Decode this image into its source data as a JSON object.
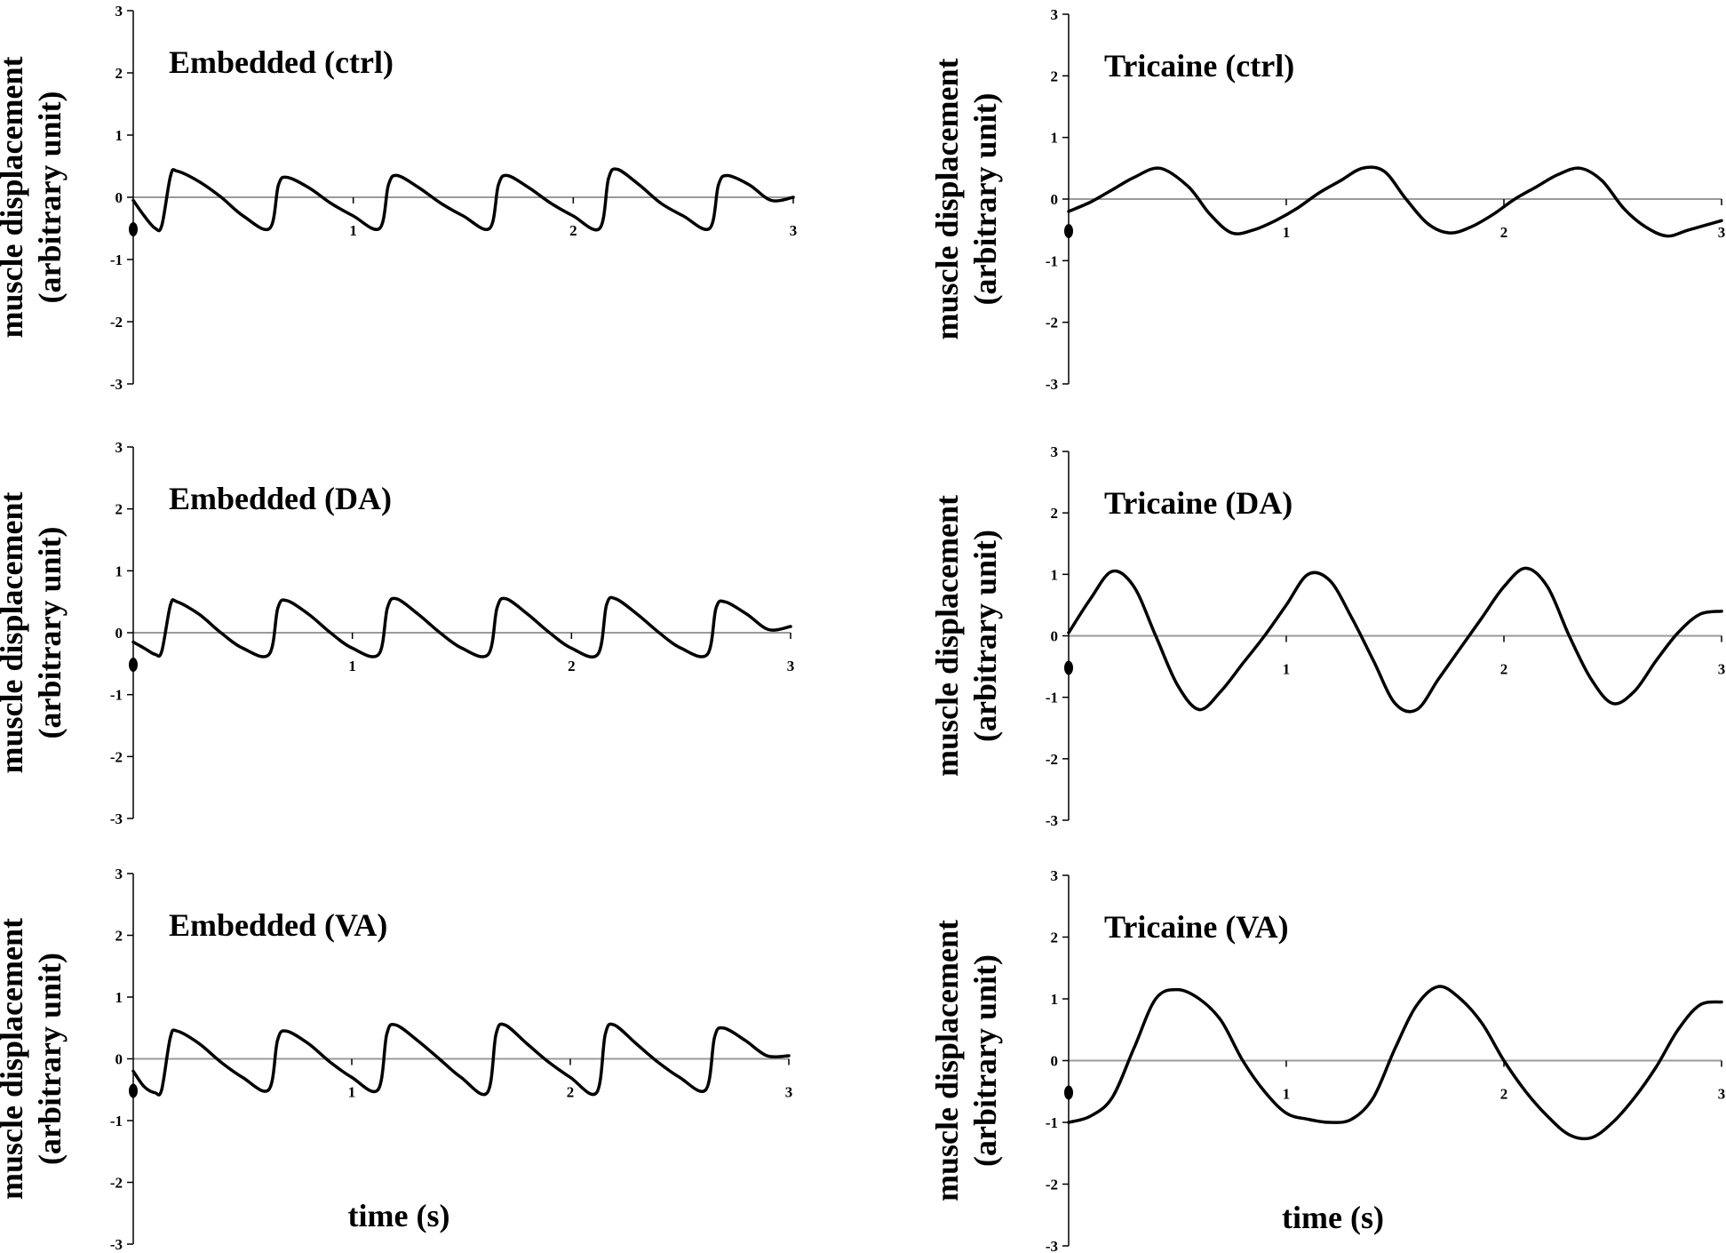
{
  "chart_data": [
    {
      "type": "line",
      "title": "Embedded (ctrl)",
      "ylabel": [
        "muscle displacement",
        "(arbitrary unit)"
      ],
      "xlabel": "",
      "xlim": [
        0,
        3
      ],
      "ylim": [
        -3,
        3
      ],
      "xticks": [
        "1",
        "2",
        "3"
      ],
      "yticks": [
        "3",
        "2",
        "1",
        "0",
        "-1",
        "-2",
        "-3"
      ],
      "grid": false,
      "legend": "none",
      "series": [
        {
          "x": [
            0,
            0.05,
            0.1,
            0.13,
            0.17,
            0.2,
            0.3,
            0.4,
            0.5,
            0.62,
            0.66,
            0.7,
            0.8,
            0.9,
            1.0,
            1.12,
            1.16,
            1.2,
            1.3,
            1.4,
            1.5,
            1.62,
            1.66,
            1.7,
            1.8,
            1.9,
            2.0,
            2.12,
            2.16,
            2.2,
            2.3,
            2.4,
            2.5,
            2.62,
            2.66,
            2.7,
            2.8,
            2.9,
            3.0
          ],
          "y": [
            -0.05,
            -0.3,
            -0.5,
            -0.45,
            0.35,
            0.42,
            0.25,
            0.0,
            -0.3,
            -0.5,
            0.2,
            0.32,
            0.15,
            -0.1,
            -0.3,
            -0.5,
            0.2,
            0.35,
            0.15,
            -0.1,
            -0.3,
            -0.5,
            0.2,
            0.35,
            0.15,
            -0.1,
            -0.3,
            -0.5,
            0.3,
            0.45,
            0.2,
            -0.1,
            -0.3,
            -0.5,
            0.2,
            0.35,
            0.2,
            -0.05,
            0.0
          ]
        }
      ]
    },
    {
      "type": "line",
      "title": "Tricaine (ctrl)",
      "ylabel": [
        "muscle displacement",
        "(arbitrary unit)"
      ],
      "xlabel": "",
      "xlim": [
        0,
        3
      ],
      "ylim": [
        -3,
        3
      ],
      "xticks": [
        "1",
        "2",
        "3"
      ],
      "yticks": [
        "3",
        "2",
        "1",
        "0",
        "-1",
        "-2",
        "-3"
      ],
      "grid": false,
      "legend": "none",
      "series": [
        {
          "x": [
            0,
            0.1,
            0.2,
            0.3,
            0.42,
            0.55,
            0.65,
            0.75,
            0.85,
            0.95,
            1.05,
            1.15,
            1.25,
            1.35,
            1.45,
            1.55,
            1.65,
            1.75,
            1.85,
            1.95,
            2.05,
            2.15,
            2.25,
            2.35,
            2.45,
            2.55,
            2.65,
            2.75,
            2.85,
            3.0
          ],
          "y": [
            -0.2,
            -0.05,
            0.15,
            0.35,
            0.5,
            0.2,
            -0.25,
            -0.55,
            -0.5,
            -0.35,
            -0.15,
            0.1,
            0.3,
            0.5,
            0.45,
            0.0,
            -0.4,
            -0.55,
            -0.45,
            -0.25,
            0.0,
            0.2,
            0.4,
            0.5,
            0.3,
            -0.15,
            -0.45,
            -0.6,
            -0.5,
            -0.35
          ]
        }
      ]
    },
    {
      "type": "line",
      "title": "Embedded (DA)",
      "ylabel": [
        "muscle displacement",
        "(arbitrary unit)"
      ],
      "xlabel": "",
      "xlim": [
        0,
        3
      ],
      "ylim": [
        -3,
        3
      ],
      "xticks": [
        "1",
        "2",
        "3"
      ],
      "yticks": [
        "3",
        "2",
        "1",
        "0",
        "-1",
        "-2",
        "-3"
      ],
      "grid": false,
      "legend": "none",
      "series": [
        {
          "x": [
            0,
            0.05,
            0.1,
            0.13,
            0.17,
            0.2,
            0.3,
            0.4,
            0.5,
            0.62,
            0.66,
            0.7,
            0.8,
            0.9,
            1.0,
            1.12,
            1.16,
            1.2,
            1.3,
            1.4,
            1.5,
            1.62,
            1.66,
            1.7,
            1.8,
            1.9,
            2.0,
            2.12,
            2.16,
            2.2,
            2.3,
            2.4,
            2.5,
            2.62,
            2.66,
            2.7,
            2.8,
            2.9,
            3.0
          ],
          "y": [
            -0.15,
            -0.25,
            -0.35,
            -0.3,
            0.45,
            0.5,
            0.3,
            0.0,
            -0.25,
            -0.35,
            0.4,
            0.52,
            0.3,
            0.0,
            -0.25,
            -0.35,
            0.4,
            0.55,
            0.3,
            0.0,
            -0.25,
            -0.35,
            0.4,
            0.55,
            0.3,
            0.0,
            -0.25,
            -0.35,
            0.45,
            0.55,
            0.3,
            0.0,
            -0.25,
            -0.35,
            0.4,
            0.5,
            0.3,
            0.05,
            0.1
          ]
        }
      ]
    },
    {
      "type": "line",
      "title": "Tricaine (DA)",
      "ylabel": [
        "muscle displacement",
        "(arbitrary unit)"
      ],
      "xlabel": "",
      "xlim": [
        0,
        3
      ],
      "ylim": [
        -3,
        3
      ],
      "xticks": [
        "1",
        "2",
        "3"
      ],
      "yticks": [
        "3",
        "2",
        "1",
        "0",
        "-1",
        "-2",
        "-3"
      ],
      "grid": false,
      "legend": "none",
      "series": [
        {
          "x": [
            0,
            0.1,
            0.2,
            0.3,
            0.4,
            0.5,
            0.6,
            0.7,
            0.8,
            0.9,
            1.0,
            1.1,
            1.2,
            1.3,
            1.4,
            1.5,
            1.6,
            1.7,
            1.8,
            1.9,
            2.0,
            2.1,
            2.2,
            2.3,
            2.4,
            2.5,
            2.6,
            2.7,
            2.8,
            2.9,
            3.0
          ],
          "y": [
            0.05,
            0.6,
            1.05,
            0.8,
            0.0,
            -0.8,
            -1.2,
            -0.9,
            -0.45,
            0.0,
            0.5,
            1.0,
            0.9,
            0.3,
            -0.4,
            -1.1,
            -1.2,
            -0.7,
            -0.2,
            0.3,
            0.8,
            1.1,
            0.8,
            0.0,
            -0.7,
            -1.1,
            -0.9,
            -0.4,
            0.05,
            0.35,
            0.4
          ]
        }
      ]
    },
    {
      "type": "line",
      "title": "Embedded (VA)",
      "ylabel": [
        "muscle displacement",
        "(arbitrary unit)"
      ],
      "xlabel": "time (s)",
      "xlim": [
        0,
        3
      ],
      "ylim": [
        -3,
        3
      ],
      "xticks": [
        "1",
        "2",
        "3"
      ],
      "yticks": [
        "3",
        "2",
        "1",
        "0",
        "-1",
        "-2",
        "-3"
      ],
      "grid": false,
      "legend": "none",
      "series": [
        {
          "x": [
            0,
            0.05,
            0.1,
            0.13,
            0.17,
            0.2,
            0.3,
            0.4,
            0.5,
            0.62,
            0.66,
            0.7,
            0.8,
            0.9,
            1.0,
            1.12,
            1.16,
            1.2,
            1.3,
            1.4,
            1.5,
            1.62,
            1.66,
            1.7,
            1.8,
            1.9,
            2.0,
            2.12,
            2.16,
            2.2,
            2.3,
            2.4,
            2.5,
            2.62,
            2.66,
            2.7,
            2.8,
            2.9,
            3.0
          ],
          "y": [
            -0.2,
            -0.45,
            -0.55,
            -0.5,
            0.35,
            0.45,
            0.25,
            -0.05,
            -0.3,
            -0.5,
            0.3,
            0.45,
            0.25,
            -0.05,
            -0.3,
            -0.5,
            0.4,
            0.55,
            0.3,
            0.0,
            -0.3,
            -0.55,
            0.4,
            0.55,
            0.25,
            -0.05,
            -0.3,
            -0.55,
            0.4,
            0.55,
            0.25,
            -0.05,
            -0.3,
            -0.5,
            0.35,
            0.5,
            0.3,
            0.05,
            0.05
          ]
        }
      ]
    },
    {
      "type": "line",
      "title": "Tricaine (VA)",
      "ylabel": [
        "muscle displacement",
        "(arbitrary unit)"
      ],
      "xlabel": "time (s)",
      "xlim": [
        0,
        3
      ],
      "ylim": [
        -3,
        3
      ],
      "xticks": [
        "1",
        "2",
        "3"
      ],
      "yticks": [
        "3",
        "2",
        "1",
        "0",
        "-1",
        "-2",
        "-3"
      ],
      "grid": false,
      "legend": "none",
      "series": [
        {
          "x": [
            0,
            0.1,
            0.2,
            0.3,
            0.4,
            0.5,
            0.6,
            0.7,
            0.8,
            0.9,
            1.0,
            1.1,
            1.2,
            1.3,
            1.4,
            1.5,
            1.6,
            1.7,
            1.8,
            1.9,
            2.0,
            2.1,
            2.2,
            2.3,
            2.4,
            2.5,
            2.6,
            2.7,
            2.8,
            2.9,
            3.0
          ],
          "y": [
            -1.0,
            -0.9,
            -0.6,
            0.2,
            1.0,
            1.15,
            1.0,
            0.65,
            0.0,
            -0.5,
            -0.85,
            -0.95,
            -1.0,
            -0.95,
            -0.6,
            0.2,
            0.9,
            1.2,
            1.0,
            0.6,
            0.0,
            -0.5,
            -0.9,
            -1.2,
            -1.25,
            -1.0,
            -0.6,
            -0.1,
            0.5,
            0.9,
            0.95
          ]
        }
      ]
    }
  ],
  "colors": {
    "line": "#000000",
    "zero_line": "#9a9a9a",
    "axis": "#000000"
  }
}
